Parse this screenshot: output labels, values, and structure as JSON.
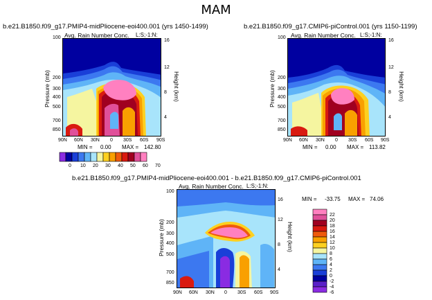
{
  "figure": {
    "season": "MAM"
  },
  "chart_data": [
    {
      "type": "heatmap",
      "title": "b.e21.B1850.f09_g17.PMIP4-midPliocene-eoi400.001 (yrs 1450-1499)",
      "subtitle": "Avg. Rain Number Conc.",
      "level_label": "L:S;-1:N:",
      "xlabel": "",
      "ylabel": "Pressure (mb)",
      "y2label": "Height (km)",
      "x_ticks": [
        "90N",
        "60N",
        "30N",
        "0",
        "30S",
        "60S",
        "90S"
      ],
      "y_ticks": [
        "100",
        "200",
        "300",
        "400",
        "500",
        "700",
        "850"
      ],
      "y2_ticks": [
        "16",
        "12",
        "8",
        "4"
      ],
      "min_label": "MIN =",
      "min_value": "0.00",
      "max_label": "MAX =",
      "max_value": "142.80"
    },
    {
      "type": "heatmap",
      "title": "b.e21.B1850.f09_g17.CMIP6-piControl.001 (yrs 1150-1199)",
      "subtitle": "Avg. Rain Number Conc.",
      "level_label": "L:S;-1:N:",
      "xlabel": "",
      "ylabel": "Pressure (mb)",
      "y2label": "Height (km)",
      "x_ticks": [
        "90N",
        "60N",
        "30N",
        "0",
        "30S",
        "60S",
        "90S"
      ],
      "y_ticks": [
        "100",
        "200",
        "300",
        "400",
        "500",
        "700",
        "850"
      ],
      "y2_ticks": [
        "16",
        "12",
        "8",
        "4"
      ],
      "min_label": "MIN =",
      "min_value": "0.00",
      "max_label": "MAX =",
      "max_value": "113.82"
    },
    {
      "type": "heatmap",
      "title": "b.e21.B1850.f09_g17.PMIP4-midPliocene-eoi400.001 - b.e21.B1850.f09_g17.CMIP6-piControl.001",
      "subtitle": "Avg. Rain Number Conc.",
      "level_label": "L:S;-1:N:",
      "xlabel": "",
      "ylabel": "Pressure (mb)",
      "y2label": "Height (km)",
      "x_ticks": [
        "90N",
        "60N",
        "30N",
        "0",
        "30S",
        "60S",
        "90S"
      ],
      "y_ticks": [
        "100",
        "200",
        "300",
        "400",
        "500",
        "700",
        "850"
      ],
      "y2_ticks": [
        "16",
        "12",
        "8",
        "4"
      ],
      "min_label": "MIN =",
      "min_value": "-33.75",
      "max_label": "MAX =",
      "max_value": "74.06"
    }
  ],
  "colorbar_top": {
    "labels": [
      "0",
      "10",
      "20",
      "30",
      "40",
      "50",
      "60",
      "70"
    ],
    "colors": [
      "#8a2be2",
      "#0000a0",
      "#1a3fd8",
      "#3c78f0",
      "#5fb4f7",
      "#a8e4fb",
      "#f5f5a0",
      "#fdd020",
      "#f9a000",
      "#ef5a0c",
      "#d91a10",
      "#a00020",
      "#e0509a",
      "#ff80c0"
    ]
  },
  "colorbar_diff": {
    "labels": [
      "22",
      "20",
      "18",
      "16",
      "14",
      "12",
      "10",
      "8",
      "6",
      "4",
      "2",
      "0",
      "-2",
      "-4",
      "-6"
    ],
    "colors": [
      "#ff80c0",
      "#e0509a",
      "#a00020",
      "#d91a10",
      "#ef5a0c",
      "#f9a000",
      "#fdd020",
      "#f5f5a0",
      "#a8e4fb",
      "#5fb4f7",
      "#3c78f0",
      "#1a3fd8",
      "#0000a0",
      "#5a20c8",
      "#8a2be2"
    ]
  }
}
